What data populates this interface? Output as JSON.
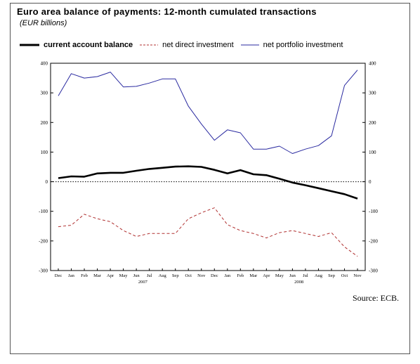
{
  "title": "Euro area balance of payments: 12-month cumulated transactions",
  "subtitle": "(EUR billions)",
  "source": "Source: ECB.",
  "chart_data": {
    "type": "line",
    "title": "Euro area balance of payments: 12-month cumulated transactions",
    "subtitle": "(EUR billions)",
    "x": [
      "Dec",
      "Jan",
      "Feb",
      "Mar",
      "Apr",
      "May",
      "Jun",
      "Jul",
      "Aug",
      "Sep",
      "Oct",
      "Nov",
      "Dec",
      "Jan",
      "Feb",
      "Mar",
      "Apr",
      "May",
      "Jun",
      "Jul",
      "Aug",
      "Sep",
      "Oct",
      "Nov"
    ],
    "year_labels": [
      {
        "label": "2007",
        "index": 6.5
      },
      {
        "label": "2008",
        "index": 18.5
      }
    ],
    "ylim": [
      -300,
      400
    ],
    "yticks": [
      -300,
      -200,
      -100,
      0,
      100,
      200,
      300,
      400
    ],
    "secondary_axis": true,
    "zero_line": "dotted",
    "grid": false,
    "legend_position": "top",
    "series": [
      {
        "name": "current account balance",
        "style": "solid-thick",
        "color": "#000000",
        "values": [
          12,
          18,
          17,
          28,
          30,
          30,
          37,
          43,
          47,
          51,
          52,
          50,
          40,
          28,
          39,
          25,
          22,
          10,
          -3,
          -12,
          -22,
          -32,
          -42,
          -57
        ]
      },
      {
        "name": "net direct investment",
        "style": "dashed",
        "color": "#b03030",
        "values": [
          -152,
          -147,
          -110,
          -125,
          -135,
          -165,
          -185,
          -175,
          -175,
          -175,
          -125,
          -105,
          -88,
          -145,
          -165,
          -175,
          -190,
          -172,
          -165,
          -175,
          -185,
          -172,
          -220,
          -252
        ]
      },
      {
        "name": "net portfolio investment",
        "style": "solid-thin",
        "color": "#2a2aa0",
        "values": [
          290,
          365,
          350,
          355,
          370,
          320,
          322,
          333,
          347,
          347,
          255,
          195,
          140,
          175,
          165,
          110,
          110,
          120,
          95,
          110,
          122,
          155,
          325,
          377
        ]
      }
    ]
  }
}
